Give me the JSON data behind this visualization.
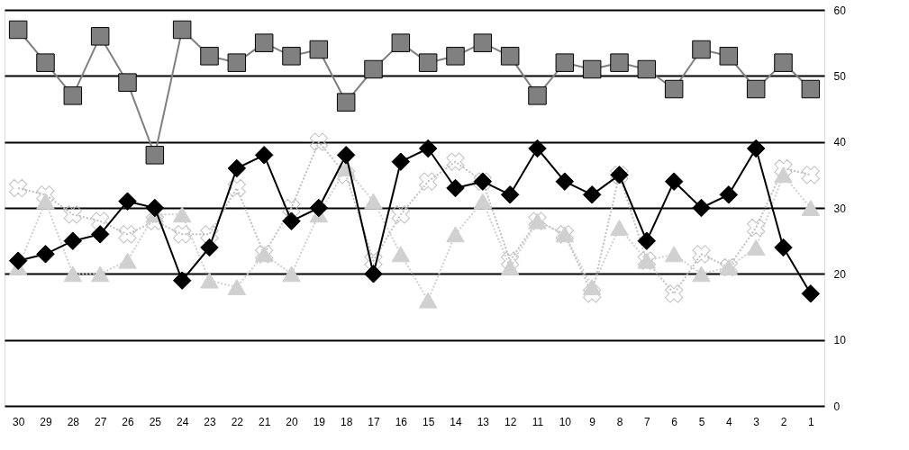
{
  "chart_data": {
    "type": "line",
    "categories": [
      "30",
      "29",
      "28",
      "27",
      "26",
      "25",
      "24",
      "23",
      "22",
      "21",
      "20",
      "19",
      "18",
      "17",
      "16",
      "15",
      "14",
      "13",
      "12",
      "11",
      "10",
      "9",
      "8",
      "7",
      "6",
      "5",
      "4",
      "3",
      "2",
      "1"
    ],
    "series": [
      {
        "color": "#808080",
        "marker": "square",
        "line_style": "solid",
        "values": [
          57,
          52,
          47,
          56,
          49,
          38,
          57,
          53,
          52,
          55,
          53,
          54,
          46,
          51,
          55,
          52,
          53,
          55,
          53,
          47,
          52,
          51,
          52,
          51,
          48,
          54,
          53,
          48,
          52,
          48
        ]
      },
      {
        "color": "#c0c0c0",
        "marker": "cross",
        "line_style": "dotted",
        "values": [
          33,
          32,
          29,
          28,
          26,
          28,
          26,
          26,
          33,
          23,
          30,
          40,
          35,
          22,
          29,
          34,
          37,
          34,
          22,
          28,
          26,
          17,
          35,
          22,
          17,
          23,
          21,
          27,
          36,
          35
        ]
      },
      {
        "color": "#d0d0d0",
        "marker": "triangle",
        "line_style": "dotted",
        "values": [
          21,
          31,
          20,
          20,
          22,
          29,
          29,
          19,
          18,
          23,
          20,
          29,
          36,
          31,
          23,
          16,
          26,
          31,
          21,
          28,
          26,
          18,
          27,
          22,
          23,
          20,
          21,
          24,
          35,
          30
        ]
      },
      {
        "color": "#000000",
        "marker": "diamond",
        "line_style": "solid",
        "values": [
          22,
          23,
          25,
          26,
          31,
          30,
          19,
          24,
          36,
          38,
          28,
          30,
          38,
          20,
          37,
          39,
          33,
          34,
          32,
          39,
          34,
          32,
          35,
          25,
          34,
          30,
          32,
          39,
          24,
          17
        ]
      }
    ],
    "ylim": [
      0,
      60
    ],
    "yticks": [
      0,
      10,
      20,
      30,
      40,
      50,
      60
    ],
    "grid": "y",
    "legend": false
  }
}
